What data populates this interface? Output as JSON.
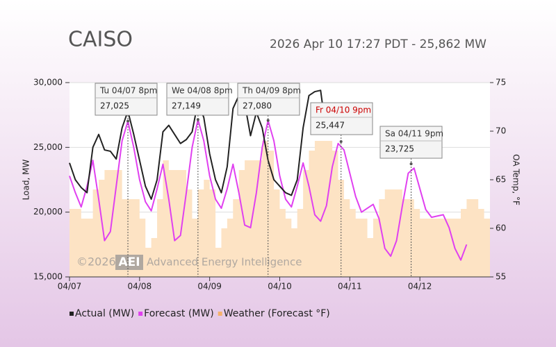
{
  "chart_data": {
    "type": "line",
    "title": "CAISO",
    "subtitle": "2026 Apr 10 17:27 PDT - 25,862 MW",
    "y_label": "Load, MW",
    "y2_label": "OA Temp, °F",
    "watermark": {
      "copyright": "©2026",
      "logo": "AEI",
      "name": "Advanced Energy Intelligence"
    },
    "x": [
      0,
      2,
      4,
      6,
      8,
      10,
      12,
      14,
      16,
      18,
      20,
      22,
      24,
      26,
      28,
      30,
      32,
      34,
      36,
      38,
      40,
      42,
      44,
      46,
      48,
      50,
      52,
      54,
      56,
      58,
      60,
      62,
      64,
      66,
      68,
      70,
      72,
      74,
      76,
      78,
      80,
      82,
      84,
      86,
      88,
      90,
      92,
      94,
      96,
      98,
      100,
      102,
      104,
      106,
      108,
      110,
      112,
      114,
      116,
      118,
      120,
      122,
      124,
      126,
      128,
      130,
      132,
      134,
      136,
      138,
      140,
      142,
      144
    ],
    "xlim": [
      0,
      144
    ],
    "xticks": [
      {
        "value": 0,
        "label": "04/07"
      },
      {
        "value": 24,
        "label": "04/08"
      },
      {
        "value": 48,
        "label": "04/09"
      },
      {
        "value": 72,
        "label": "04/10"
      },
      {
        "value": 96,
        "label": "04/11"
      },
      {
        "value": 120,
        "label": "04/12"
      }
    ],
    "ylim": [
      15000,
      30000
    ],
    "yticks": [
      {
        "value": 15000,
        "label": "15,000"
      },
      {
        "value": 20000,
        "label": "20,000"
      },
      {
        "value": 25000,
        "label": "25,000"
      },
      {
        "value": 30000,
        "label": "30,000"
      }
    ],
    "y2lim": [
      55,
      75
    ],
    "y2ticks": [
      55,
      60,
      65,
      70,
      75
    ],
    "grid": true,
    "legend": "bottom",
    "series": [
      {
        "name": "Weather (Forecast °F)",
        "color": "#fde3c4",
        "style": "area",
        "axis": "y2",
        "values": [
          62,
          62,
          61,
          61,
          64,
          65,
          66,
          66,
          66,
          63,
          63,
          63,
          61,
          58,
          59,
          63,
          67,
          66,
          66,
          66,
          64,
          61,
          64,
          65,
          64,
          58,
          60,
          61,
          63,
          66,
          67,
          67,
          67,
          69,
          68,
          64,
          62,
          61,
          60,
          62,
          66,
          68,
          69,
          69,
          69,
          68,
          65,
          63,
          62,
          61,
          61,
          59,
          61,
          63,
          64,
          64,
          64,
          63,
          63,
          62,
          61,
          61,
          61,
          61,
          61,
          61,
          61,
          62,
          63,
          63,
          62,
          61,
          61
        ]
      },
      {
        "name": "Forecast (MW)",
        "color": "#e040f0",
        "style": "line",
        "values": [
          22800,
          21500,
          20400,
          22000,
          24000,
          21000,
          17800,
          18500,
          22000,
          25500,
          27025,
          25000,
          22500,
          20800,
          20100,
          21800,
          23700,
          21000,
          17800,
          18200,
          21500,
          25000,
          27149,
          25500,
          22800,
          21000,
          20300,
          21800,
          23700,
          21500,
          19000,
          18800,
          21500,
          25000,
          27080,
          25500,
          22800,
          21000,
          20400,
          22000,
          23800,
          22000,
          19800,
          19300,
          20500,
          23500,
          25300,
          24800,
          23000,
          21200,
          20000,
          20300,
          20600,
          19500,
          17200,
          16600,
          17800,
          20500,
          23000,
          23400,
          21800,
          20200,
          19600,
          19700,
          19800,
          18800,
          17200,
          16300,
          17500,
          null,
          null,
          null,
          null
        ]
      },
      {
        "name": "Actual (MW)",
        "color": "#222222",
        "style": "line",
        "values": [
          23800,
          22500,
          21900,
          21500,
          25000,
          26000,
          24800,
          24700,
          24100,
          26500,
          27800,
          26000,
          24000,
          22000,
          21000,
          22500,
          26200,
          26700,
          26000,
          25300,
          25600,
          26200,
          28500,
          27300,
          24500,
          22500,
          21500,
          23500,
          28000,
          29000,
          28400,
          25900,
          27700,
          26500,
          24000,
          22500,
          22000,
          21500,
          21300,
          22500,
          26500,
          29000,
          29300,
          29400,
          26000,
          null,
          null,
          null,
          null,
          null,
          null,
          null,
          null,
          null,
          null,
          null,
          null,
          null,
          null,
          null,
          null,
          null,
          null,
          null,
          null,
          null,
          null,
          null,
          null,
          null,
          null,
          null,
          null
        ]
      }
    ],
    "legend_order": [
      2,
      1,
      0
    ],
    "annotations": [
      {
        "label": "Tu 04/07 8pm",
        "x": 20,
        "value": 27025,
        "value_label": "27,025"
      },
      {
        "label": "We 04/08 8pm",
        "x": 44,
        "value": 27149,
        "value_label": "27,149"
      },
      {
        "label": "Th 04/09 8pm",
        "x": 68,
        "value": 27080,
        "value_label": "27,080"
      },
      {
        "label": "Fr 04/10 9pm",
        "x": 93,
        "value": 25447,
        "value_label": "25,447",
        "color": "#cc0000"
      },
      {
        "label": "Sa 04/11 9pm",
        "x": 117,
        "value": 23725,
        "value_label": "23,725"
      }
    ]
  }
}
